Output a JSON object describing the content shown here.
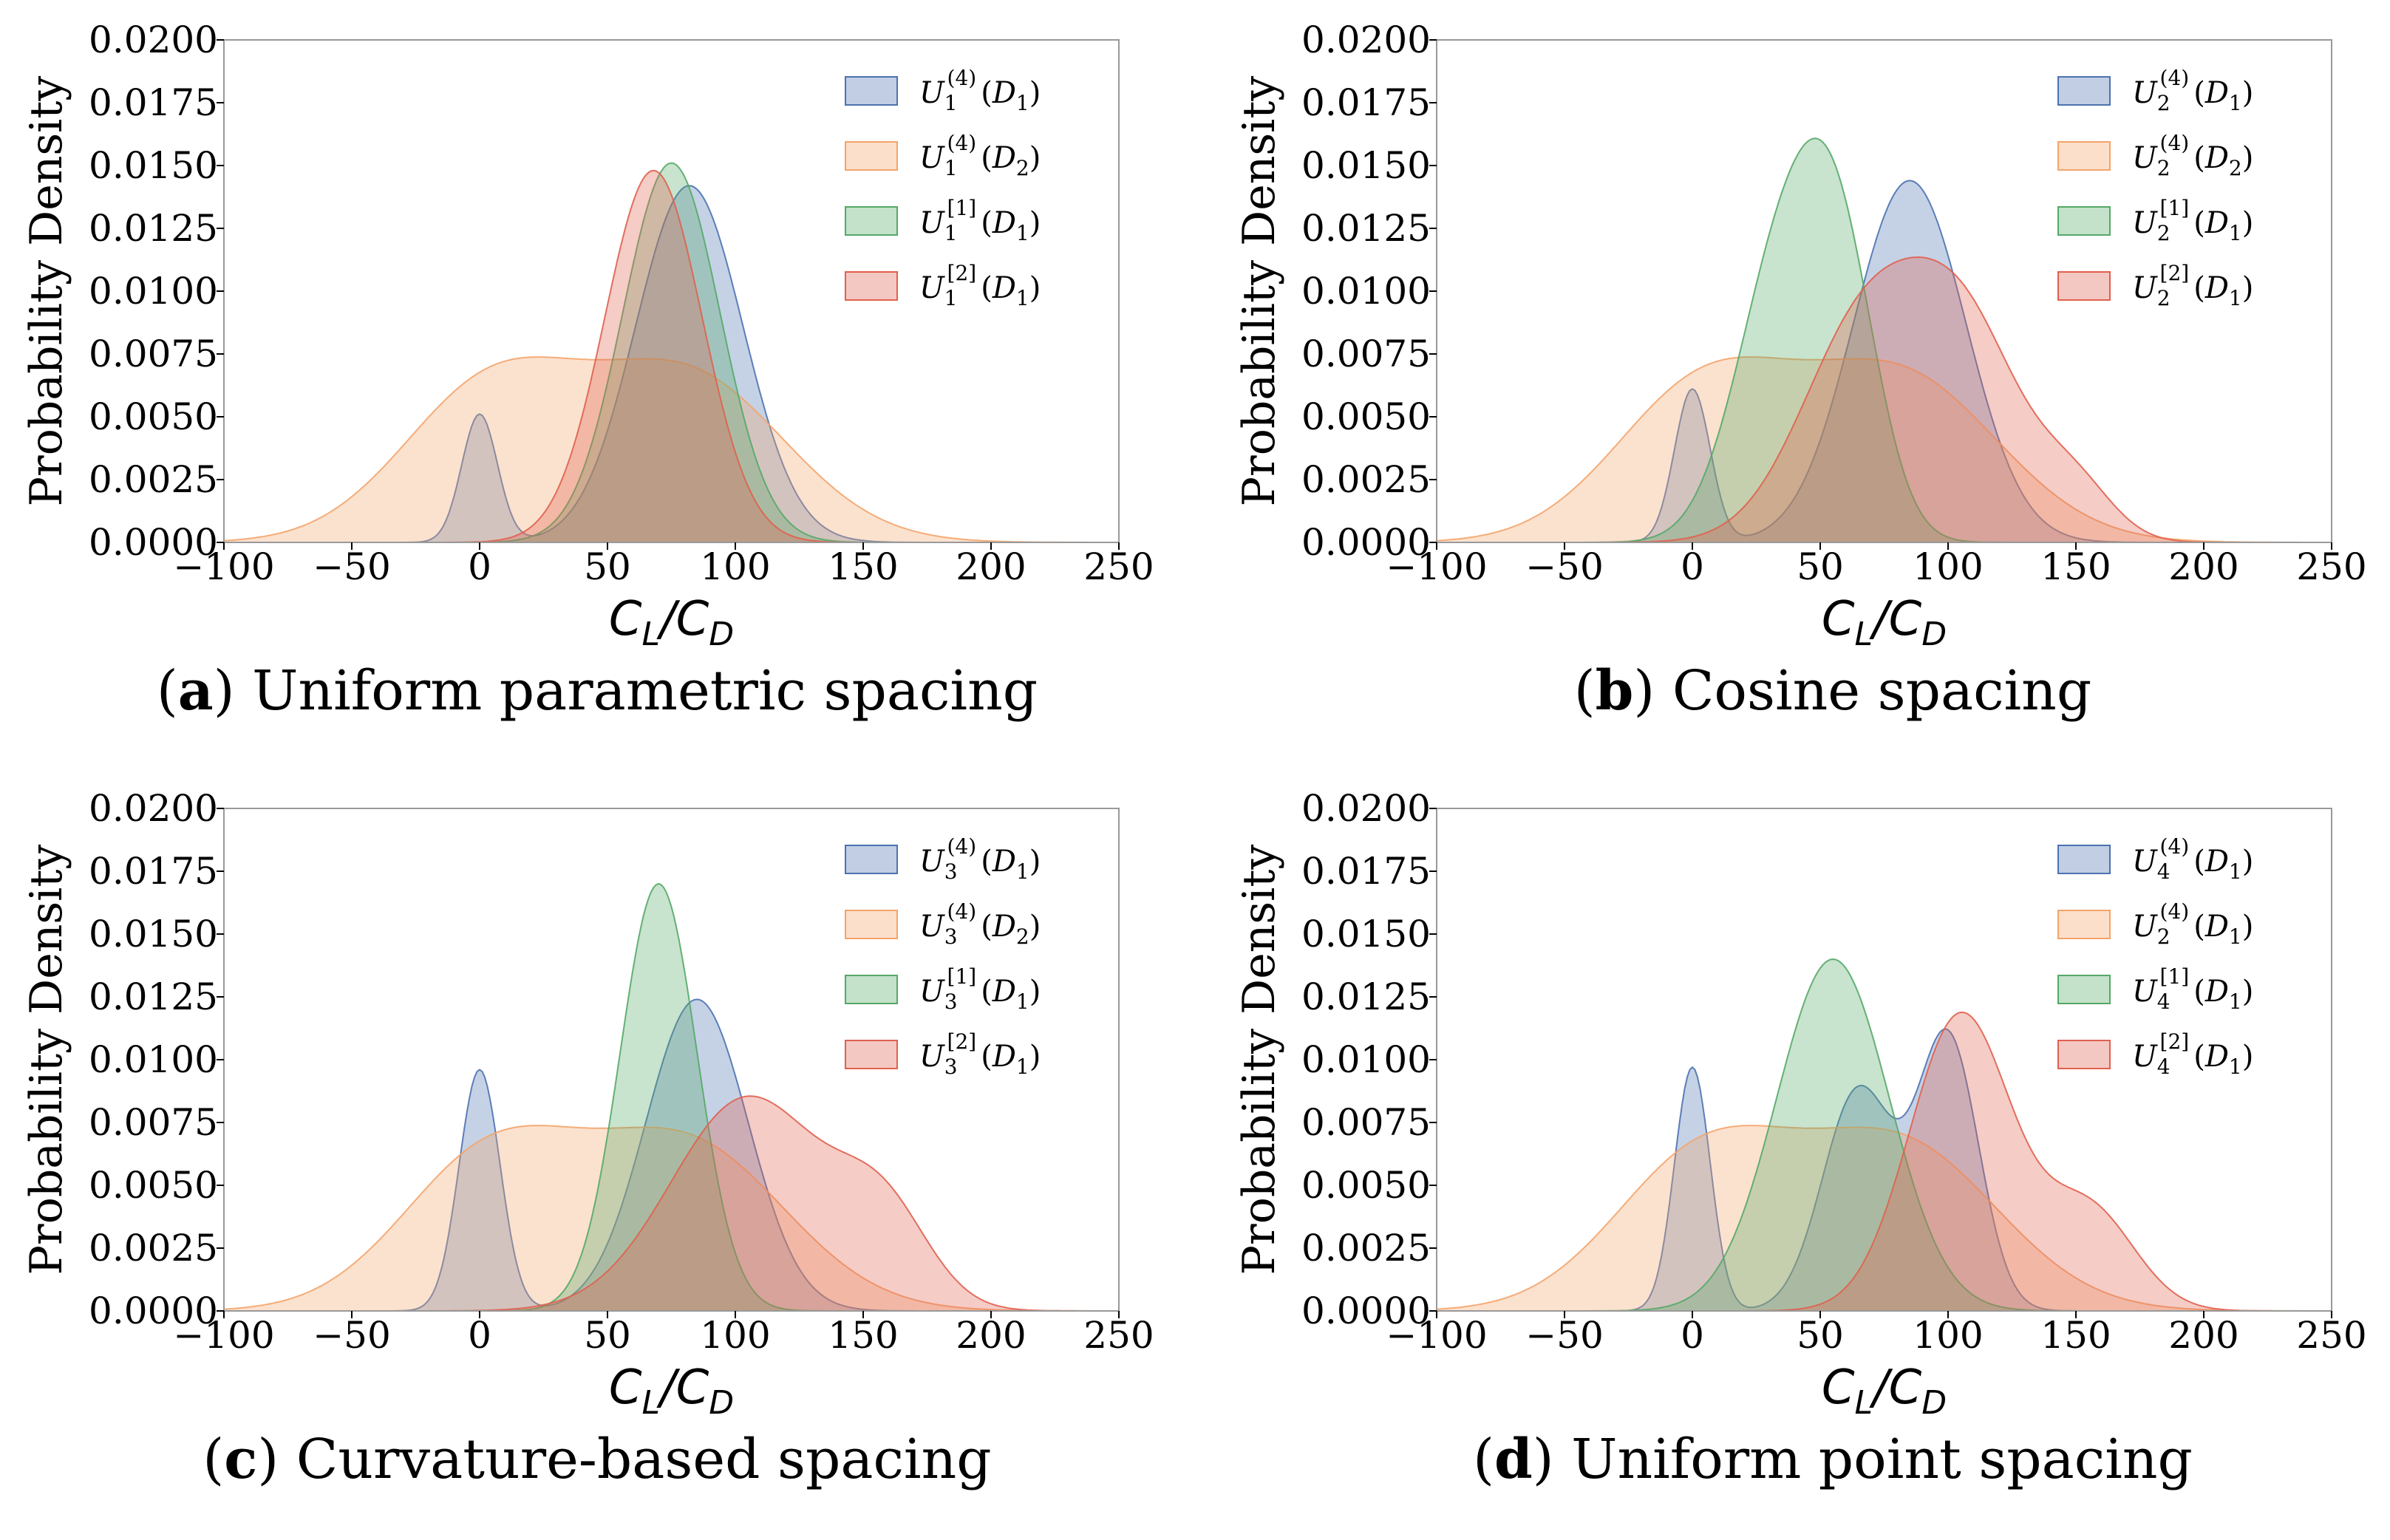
{
  "chart_data": [
    {
      "type": "area",
      "panel_letter": "a",
      "caption": "Uniform parametric spacing",
      "xlabel": "C",
      "xlabel_subs": [
        "L",
        "D"
      ],
      "ylabel": "Probability Density",
      "xlim": [
        -100,
        250
      ],
      "ylim": [
        0,
        0.02
      ],
      "xticks": [
        "−100",
        "−50",
        "0",
        "50",
        "100",
        "150",
        "200",
        "250"
      ],
      "yticks": [
        "0.0000",
        "0.0025",
        "0.0050",
        "0.0075",
        "0.0100",
        "0.0125",
        "0.0150",
        "0.0175",
        "0.0200"
      ],
      "series": [
        {
          "name": "U1(4)(D1)",
          "label_sub": "1",
          "label_sup": "(4)",
          "label_d": "1",
          "color": "#4c72b0",
          "components": [
            {
              "m": 0,
              "s": 7,
              "w": 0.0051
            },
            {
              "m": 82,
              "s": 21,
              "w": 0.0142
            }
          ]
        },
        {
          "name": "U1(4)(D2)",
          "label_sub": "1",
          "label_sup": "(4)",
          "label_d": "2",
          "color": "#f4a46a",
          "components": [
            {
              "m": 5,
              "s": 35,
              "w": 0.0062
            },
            {
              "m": 82,
              "s": 38,
              "w": 0.0065
            }
          ]
        },
        {
          "name": "U1[1](D1)",
          "label_sub": "1",
          "label_sup": "[1]",
          "label_d": "1",
          "color": "#55a868",
          "components": [
            {
              "m": 75,
              "s": 19,
              "w": 0.0151
            }
          ]
        },
        {
          "name": "U1[2](D1)",
          "label_sub": "1",
          "label_sup": "[2]",
          "label_d": "1",
          "color": "#e0604f",
          "components": [
            {
              "m": 68,
              "s": 19,
              "w": 0.0148
            }
          ]
        }
      ]
    },
    {
      "type": "area",
      "panel_letter": "b",
      "caption": "Cosine spacing",
      "xlabel": "C",
      "xlabel_subs": [
        "L",
        "D"
      ],
      "ylabel": "Probability Density",
      "xlim": [
        -100,
        250
      ],
      "ylim": [
        0,
        0.02
      ],
      "xticks": [
        "−100",
        "−50",
        "0",
        "50",
        "100",
        "150",
        "200",
        "250"
      ],
      "yticks": [
        "0.0000",
        "0.0025",
        "0.0050",
        "0.0075",
        "0.0100",
        "0.0125",
        "0.0150",
        "0.0175",
        "0.0200"
      ],
      "series": [
        {
          "name": "U2(4)(D1)",
          "label_sub": "2",
          "label_sup": "(4)",
          "label_d": "1",
          "color": "#4c72b0",
          "components": [
            {
              "m": 0,
              "s": 7,
              "w": 0.0061
            },
            {
              "m": 85,
              "s": 22,
              "w": 0.0144
            }
          ]
        },
        {
          "name": "U2(4)(D2)",
          "label_sub": "2",
          "label_sup": "(4)",
          "label_d": "2",
          "color": "#f4a46a",
          "components": [
            {
              "m": 5,
              "s": 35,
              "w": 0.0062
            },
            {
              "m": 82,
              "s": 38,
              "w": 0.0065
            }
          ]
        },
        {
          "name": "U2[1](D1)",
          "label_sub": "2",
          "label_sup": "[1]",
          "label_d": "1",
          "color": "#55a868",
          "components": [
            {
              "m": 35,
              "s": 18,
              "w": 0.011
            },
            {
              "m": 58,
              "s": 15,
              "w": 0.0095
            }
          ]
        },
        {
          "name": "U2[2](D1)",
          "label_sub": "2",
          "label_sup": "[2]",
          "label_d": "1",
          "color": "#e0604f",
          "components": [
            {
              "m": 68,
              "s": 25,
              "w": 0.0088
            },
            {
              "m": 108,
              "s": 22,
              "w": 0.0075
            },
            {
              "m": 150,
              "s": 15,
              "w": 0.002
            }
          ]
        }
      ]
    },
    {
      "type": "area",
      "panel_letter": "c",
      "caption": "Curvature-based spacing",
      "xlabel": "C",
      "xlabel_subs": [
        "L",
        "D"
      ],
      "ylabel": "Probability Density",
      "xlim": [
        -100,
        250
      ],
      "ylim": [
        0,
        0.02
      ],
      "xticks": [
        "−100",
        "−50",
        "0",
        "50",
        "100",
        "150",
        "200",
        "250"
      ],
      "yticks": [
        "0.0000",
        "0.0025",
        "0.0050",
        "0.0075",
        "0.0100",
        "0.0125",
        "0.0150",
        "0.0175",
        "0.0200"
      ],
      "series": [
        {
          "name": "U3(4)(D1)",
          "label_sub": "3",
          "label_sup": "(4)",
          "label_d": "1",
          "color": "#4c72b0",
          "components": [
            {
              "m": 0,
              "s": 8,
              "w": 0.0096
            },
            {
              "m": 85,
              "s": 20,
              "w": 0.0124
            }
          ]
        },
        {
          "name": "U3(4)(D2)",
          "label_sub": "3",
          "label_sup": "(4)",
          "label_d": "2",
          "color": "#f4a46a",
          "components": [
            {
              "m": 5,
              "s": 35,
              "w": 0.0062
            },
            {
              "m": 82,
              "s": 38,
              "w": 0.0065
            }
          ]
        },
        {
          "name": "U3[1](D1)",
          "label_sub": "3",
          "label_sup": "[1]",
          "label_d": "1",
          "color": "#55a868",
          "components": [
            {
              "m": 70,
              "s": 15,
              "w": 0.017
            }
          ]
        },
        {
          "name": "U3[2](D1)",
          "label_sub": "3",
          "label_sup": "[2]",
          "label_d": "1",
          "color": "#e0604f",
          "components": [
            {
              "m": 105,
              "s": 30,
              "w": 0.0085
            },
            {
              "m": 158,
              "s": 18,
              "w": 0.0035
            }
          ]
        }
      ]
    },
    {
      "type": "area",
      "panel_letter": "d",
      "caption": "Uniform point spacing",
      "xlabel": "C",
      "xlabel_subs": [
        "L",
        "D"
      ],
      "ylabel": "Probability Density",
      "xlim": [
        -100,
        250
      ],
      "ylim": [
        0,
        0.02
      ],
      "xticks": [
        "−100",
        "−50",
        "0",
        "50",
        "100",
        "150",
        "200",
        "250"
      ],
      "yticks": [
        "0.0000",
        "0.0025",
        "0.0050",
        "0.0075",
        "0.0100",
        "0.0125",
        "0.0150",
        "0.0175",
        "0.0200"
      ],
      "series": [
        {
          "name": "U4(4)(D1)",
          "label_sub": "4",
          "label_sup": "(4)",
          "label_d": "1",
          "color": "#4c72b0",
          "components": [
            {
              "m": 0,
              "s": 7,
              "w": 0.0097
            },
            {
              "m": 65,
              "s": 14,
              "w": 0.0088
            },
            {
              "m": 100,
              "s": 12,
              "w": 0.0108
            }
          ]
        },
        {
          "name": "U2(4)(D1)",
          "label_sub": "2",
          "label_sup": "(4)",
          "label_d": "1",
          "color": "#f4a46a",
          "components": [
            {
              "m": 5,
              "s": 35,
              "w": 0.0062
            },
            {
              "m": 82,
              "s": 38,
              "w": 0.0065
            }
          ]
        },
        {
          "name": "U4[1](D1)",
          "label_sub": "4",
          "label_sup": "[1]",
          "label_d": "1",
          "color": "#55a868",
          "components": [
            {
              "m": 55,
              "s": 22,
              "w": 0.014
            }
          ]
        },
        {
          "name": "U4[2](D1)",
          "label_sub": "4",
          "label_sup": "[2]",
          "label_d": "1",
          "color": "#e0604f",
          "components": [
            {
              "m": 105,
              "s": 20,
              "w": 0.0118
            },
            {
              "m": 155,
              "s": 18,
              "w": 0.004
            }
          ]
        }
      ]
    }
  ]
}
